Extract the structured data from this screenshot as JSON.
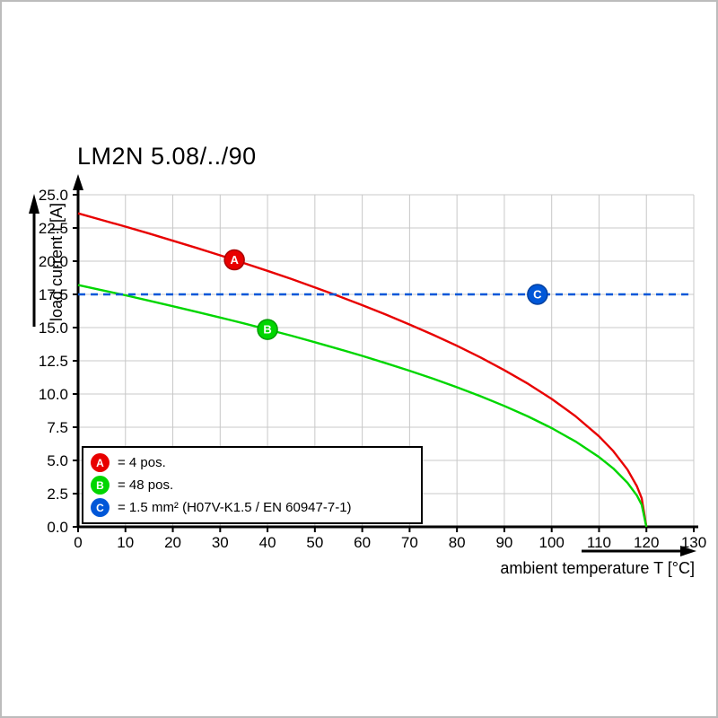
{
  "page": {
    "background": "#ffffff",
    "border_color": "#bcbcbc"
  },
  "chart_data": {
    "type": "line",
    "title": "LM2N 5.08/../90",
    "xlabel": "ambient temperature T [°C]",
    "ylabel": "load current I [A]",
    "xlim": [
      0,
      130
    ],
    "ylim": [
      0,
      25
    ],
    "grid": true,
    "grid_color": "#c8c8c8",
    "legend_position": "lower-left",
    "xticks": [
      0,
      10,
      20,
      30,
      40,
      50,
      60,
      70,
      80,
      90,
      100,
      110,
      120,
      130
    ],
    "yticks": [
      {
        "v": 0,
        "label": "0.0"
      },
      {
        "v": 2.5,
        "label": "2.5"
      },
      {
        "v": 5,
        "label": "5.0"
      },
      {
        "v": 7.5,
        "label": "7.5"
      },
      {
        "v": 10,
        "label": "10.0"
      },
      {
        "v": 12.5,
        "label": "12.5"
      },
      {
        "v": 15,
        "label": "15.0"
      },
      {
        "v": 17.5,
        "label": "17.5"
      },
      {
        "v": 20,
        "label": "20.0"
      },
      {
        "v": 22.5,
        "label": "22.5"
      },
      {
        "v": 25,
        "label": "25.0"
      }
    ],
    "series": [
      {
        "name": "A",
        "description": "= 4 pos.",
        "color": "#e80000",
        "style": "solid",
        "points": [
          [
            0,
            23.6
          ],
          [
            5,
            23.1
          ],
          [
            10,
            22.6
          ],
          [
            15,
            22.08
          ],
          [
            20,
            21.54
          ],
          [
            25,
            21.0
          ],
          [
            30,
            20.44
          ],
          [
            35,
            19.86
          ],
          [
            40,
            19.27
          ],
          [
            45,
            18.66
          ],
          [
            50,
            18.02
          ],
          [
            55,
            17.37
          ],
          [
            60,
            16.69
          ],
          [
            65,
            15.98
          ],
          [
            70,
            15.23
          ],
          [
            75,
            14.45
          ],
          [
            80,
            13.63
          ],
          [
            85,
            12.75
          ],
          [
            90,
            11.8
          ],
          [
            95,
            10.77
          ],
          [
            100,
            9.63
          ],
          [
            105,
            8.34
          ],
          [
            110,
            6.81
          ],
          [
            113,
            5.7
          ],
          [
            116,
            4.31
          ],
          [
            118,
            3.05
          ],
          [
            119,
            2.15
          ],
          [
            120,
            0
          ]
        ]
      },
      {
        "name": "B",
        "description": "= 48 pos.",
        "color": "#00d600",
        "style": "solid",
        "points": [
          [
            0,
            18.2
          ],
          [
            5,
            17.82
          ],
          [
            10,
            17.43
          ],
          [
            15,
            17.02
          ],
          [
            20,
            16.61
          ],
          [
            25,
            16.19
          ],
          [
            30,
            15.76
          ],
          [
            35,
            15.32
          ],
          [
            40,
            14.86
          ],
          [
            45,
            14.39
          ],
          [
            50,
            13.9
          ],
          [
            55,
            13.39
          ],
          [
            60,
            12.87
          ],
          [
            65,
            12.32
          ],
          [
            70,
            11.75
          ],
          [
            75,
            11.15
          ],
          [
            80,
            10.51
          ],
          [
            85,
            9.83
          ],
          [
            90,
            9.1
          ],
          [
            95,
            8.31
          ],
          [
            100,
            7.43
          ],
          [
            105,
            6.43
          ],
          [
            110,
            5.25
          ],
          [
            113,
            4.4
          ],
          [
            116,
            3.32
          ],
          [
            118,
            2.35
          ],
          [
            119,
            1.66
          ],
          [
            120,
            0
          ]
        ]
      },
      {
        "name": "C",
        "description": "= 1.5 mm² (H07V-K1.5 / EN 60947-7-1)",
        "color": "#0057d8",
        "style": "dashed",
        "points": [
          [
            0,
            17.5
          ],
          [
            130,
            17.5
          ]
        ]
      }
    ],
    "markers": [
      {
        "label": "A",
        "color": "#e80000",
        "edge": "#a80000",
        "x": 33,
        "y": 20.1
      },
      {
        "label": "B",
        "color": "#00d600",
        "edge": "#009c00",
        "x": 40,
        "y": 14.86
      },
      {
        "label": "C",
        "color": "#0057d8",
        "edge": "#003f9e",
        "x": 97,
        "y": 17.5
      }
    ]
  },
  "legend": {
    "items": [
      {
        "letter": "A",
        "color": "#e80000",
        "text": "= 4 pos."
      },
      {
        "letter": "B",
        "color": "#00d600",
        "text": "= 48 pos."
      },
      {
        "letter": "C",
        "color": "#0057d8",
        "text": "= 1.5 mm² (H07V-K1.5 / EN 60947-7-1)"
      }
    ]
  }
}
